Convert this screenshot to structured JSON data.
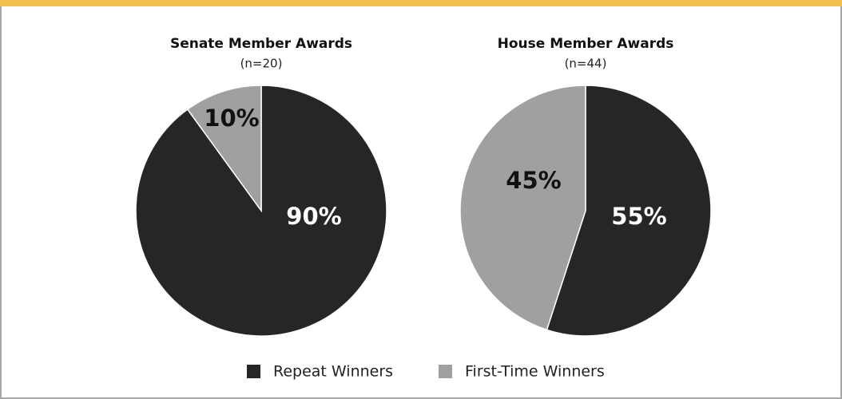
{
  "chart_data": [
    {
      "type": "pie",
      "title": "Senate Member Awards",
      "subtitle": "(n=20)",
      "categories": [
        "Repeat Winners",
        "First-Time Winners"
      ],
      "values": [
        90,
        10
      ],
      "value_labels": [
        "90%",
        "10%"
      ],
      "colors": [
        "#262626",
        "#a0a0a0"
      ],
      "legend": "bottom"
    },
    {
      "type": "pie",
      "title": "House Member Awards",
      "subtitle": "(n=44)",
      "categories": [
        "Repeat Winners",
        "First-Time Winners"
      ],
      "values": [
        55,
        45
      ],
      "value_labels": [
        "55%",
        "45%"
      ],
      "colors": [
        "#262626",
        "#a0a0a0"
      ]
    }
  ]
}
